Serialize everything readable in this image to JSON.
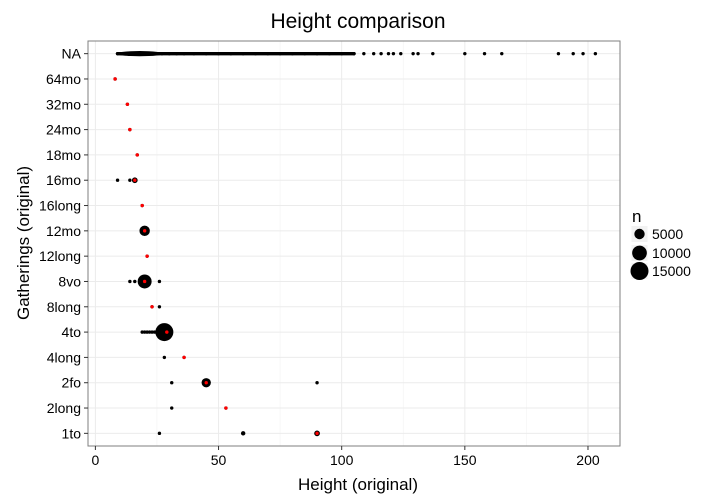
{
  "chart_data": {
    "type": "scatter",
    "title": "Height comparison",
    "xlabel": "Height (original)",
    "ylabel": "Gatherings (original)",
    "xlim": [
      -3,
      213
    ],
    "x_ticks": [
      0,
      50,
      100,
      150,
      200
    ],
    "x_tick_labels": [
      "0",
      "50",
      "100",
      "150",
      "200"
    ],
    "categories": [
      "1to",
      "2long",
      "2fo",
      "4long",
      "4to",
      "8long",
      "8vo",
      "12long",
      "12mo",
      "16long",
      "16mo",
      "18mo",
      "24mo",
      "32mo",
      "64mo",
      "NA"
    ],
    "grid": true,
    "legend": {
      "title": "n",
      "placement": "right",
      "entries": [
        {
          "label": "5000",
          "n": 5000
        },
        {
          "label": "10000",
          "n": 10000
        },
        {
          "label": "15000",
          "n": 15000
        }
      ]
    },
    "series": [
      {
        "color": "#000000",
        "points": [
          {
            "y": "1to",
            "x": 26,
            "n": 30
          },
          {
            "y": "1to",
            "x": 60,
            "n": 900
          },
          {
            "y": "1to",
            "x": 90,
            "n": 1500
          },
          {
            "y": "2long",
            "x": 31,
            "n": 30
          },
          {
            "y": "2long",
            "x": 53,
            "n": 200
          },
          {
            "y": "2fo",
            "x": 31,
            "n": 30
          },
          {
            "y": "2fo",
            "x": 45,
            "n": 4000
          },
          {
            "y": "2fo",
            "x": 90,
            "n": 30
          },
          {
            "y": "4long",
            "x": 28,
            "n": 30
          },
          {
            "y": "4long",
            "x": 36,
            "n": 300
          },
          {
            "y": "4to",
            "x": 19,
            "n": 30
          },
          {
            "y": "4to",
            "x": 20,
            "n": 30
          },
          {
            "y": "4to",
            "x": 21,
            "n": 30
          },
          {
            "y": "4to",
            "x": 22,
            "n": 30
          },
          {
            "y": "4to",
            "x": 23,
            "n": 30
          },
          {
            "y": "4to",
            "x": 24,
            "n": 40
          },
          {
            "y": "4to",
            "x": 25,
            "n": 60
          },
          {
            "y": "4to",
            "x": 26,
            "n": 80
          },
          {
            "y": "4to",
            "x": 27,
            "n": 100
          },
          {
            "y": "4to",
            "x": 28,
            "n": 15000
          },
          {
            "y": "8long",
            "x": 23,
            "n": 200
          },
          {
            "y": "8long",
            "x": 26,
            "n": 30
          },
          {
            "y": "8vo",
            "x": 14,
            "n": 30
          },
          {
            "y": "8vo",
            "x": 16,
            "n": 30
          },
          {
            "y": "8vo",
            "x": 18,
            "n": 30
          },
          {
            "y": "8vo",
            "x": 20,
            "n": 9000
          },
          {
            "y": "8vo",
            "x": 26,
            "n": 30
          },
          {
            "y": "12long",
            "x": 21,
            "n": 150
          },
          {
            "y": "12mo",
            "x": 20,
            "n": 5000
          },
          {
            "y": "16long",
            "x": 19,
            "n": 150
          },
          {
            "y": "16mo",
            "x": 9,
            "n": 30
          },
          {
            "y": "16mo",
            "x": 14,
            "n": 30
          },
          {
            "y": "16mo",
            "x": 16,
            "n": 1500
          },
          {
            "y": "18mo",
            "x": 17,
            "n": 200
          },
          {
            "y": "24mo",
            "x": 14,
            "n": 300
          },
          {
            "y": "32mo",
            "x": 13,
            "n": 300
          },
          {
            "y": "64mo",
            "x": 8,
            "n": 200
          },
          {
            "y": "NA",
            "x": 9,
            "n": 30
          },
          {
            "y": "NA",
            "x": 12,
            "n": 30
          },
          {
            "y": "NA",
            "x": 15,
            "n": 30
          },
          {
            "y": "NA",
            "x": 18,
            "n": 30
          },
          {
            "y": "NA",
            "x": 21,
            "n": 30
          },
          {
            "y": "NA",
            "x": 24,
            "n": 30
          },
          {
            "y": "NA",
            "x": 27,
            "n": 30
          },
          {
            "y": "NA",
            "x": 30,
            "n": 30
          },
          {
            "y": "NA",
            "x": 33,
            "n": 30
          },
          {
            "y": "NA",
            "x": 36,
            "n": 30
          },
          {
            "y": "NA",
            "x": 40,
            "n": 30
          },
          {
            "y": "NA",
            "x": 45,
            "n": 30
          },
          {
            "y": "NA",
            "x": 50,
            "n": 30
          },
          {
            "y": "NA",
            "x": 55,
            "n": 30
          },
          {
            "y": "NA",
            "x": 60,
            "n": 30
          },
          {
            "y": "NA",
            "x": 65,
            "n": 30
          },
          {
            "y": "NA",
            "x": 70,
            "n": 30
          },
          {
            "y": "NA",
            "x": 75,
            "n": 30
          },
          {
            "y": "NA",
            "x": 80,
            "n": 30
          },
          {
            "y": "NA",
            "x": 85,
            "n": 30
          },
          {
            "y": "NA",
            "x": 90,
            "n": 30
          },
          {
            "y": "NA",
            "x": 95,
            "n": 30
          },
          {
            "y": "NA",
            "x": 100,
            "n": 30
          },
          {
            "y": "NA",
            "x": 105,
            "n": 30
          },
          {
            "y": "NA",
            "x": 109,
            "n": 30
          },
          {
            "y": "NA",
            "x": 113,
            "n": 30
          },
          {
            "y": "NA",
            "x": 116,
            "n": 30
          },
          {
            "y": "NA",
            "x": 119,
            "n": 30
          },
          {
            "y": "NA",
            "x": 121,
            "n": 30
          },
          {
            "y": "NA",
            "x": 124,
            "n": 30
          },
          {
            "y": "NA",
            "x": 129,
            "n": 30
          },
          {
            "y": "NA",
            "x": 131,
            "n": 30
          },
          {
            "y": "NA",
            "x": 137,
            "n": 30
          },
          {
            "y": "NA",
            "x": 150,
            "n": 30
          },
          {
            "y": "NA",
            "x": 158,
            "n": 30
          },
          {
            "y": "NA",
            "x": 165,
            "n": 30
          },
          {
            "y": "NA",
            "x": 188,
            "n": 30
          },
          {
            "y": "NA",
            "x": 194,
            "n": 30
          },
          {
            "y": "NA",
            "x": 198,
            "n": 30
          },
          {
            "y": "NA",
            "x": 203,
            "n": 30
          }
        ]
      },
      {
        "color": "#ff0000",
        "points": [
          {
            "y": "1to",
            "x": 90,
            "n": 200
          },
          {
            "y": "2long",
            "x": 53,
            "n": 200
          },
          {
            "y": "2fo",
            "x": 45,
            "n": 200
          },
          {
            "y": "4long",
            "x": 36,
            "n": 200
          },
          {
            "y": "4to",
            "x": 29,
            "n": 200
          },
          {
            "y": "8long",
            "x": 23,
            "n": 200
          },
          {
            "y": "8vo",
            "x": 20,
            "n": 200
          },
          {
            "y": "12long",
            "x": 21,
            "n": 200
          },
          {
            "y": "12mo",
            "x": 20,
            "n": 200
          },
          {
            "y": "16long",
            "x": 19,
            "n": 200
          },
          {
            "y": "16mo",
            "x": 16,
            "n": 200
          },
          {
            "y": "18mo",
            "x": 17,
            "n": 200
          },
          {
            "y": "24mo",
            "x": 14,
            "n": 200
          },
          {
            "y": "32mo",
            "x": 13,
            "n": 200
          },
          {
            "y": "64mo",
            "x": 8,
            "n": 200
          }
        ]
      }
    ]
  }
}
